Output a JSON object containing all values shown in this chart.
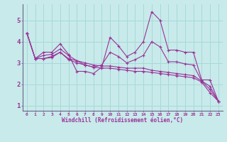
{
  "xlabel": "Windchill (Refroidissement éolien,°C)",
  "bg_color": "#c8eaea",
  "grid_color": "#a8d8d8",
  "line_color": "#993399",
  "series": [
    [
      4.4,
      3.2,
      3.5,
      3.5,
      3.9,
      3.4,
      2.6,
      2.6,
      2.5,
      2.8,
      4.2,
      3.8,
      3.3,
      3.5,
      4.0,
      5.4,
      5.0,
      3.6,
      3.6,
      3.5,
      3.5,
      2.2,
      2.2,
      1.2
    ],
    [
      4.4,
      3.2,
      3.2,
      3.25,
      3.5,
      3.15,
      3.0,
      2.9,
      2.8,
      2.75,
      2.75,
      2.7,
      2.65,
      2.6,
      2.6,
      2.55,
      2.5,
      2.45,
      2.4,
      2.35,
      2.3,
      2.1,
      1.6,
      1.2
    ],
    [
      4.4,
      3.2,
      3.35,
      3.4,
      3.65,
      3.35,
      3.1,
      2.9,
      2.8,
      2.9,
      3.5,
      3.3,
      3.0,
      3.15,
      3.35,
      4.0,
      3.75,
      3.05,
      3.05,
      2.95,
      2.9,
      2.15,
      1.9,
      1.2
    ],
    [
      4.4,
      3.2,
      3.2,
      3.3,
      3.5,
      3.2,
      3.1,
      3.0,
      2.9,
      2.85,
      2.85,
      2.8,
      2.75,
      2.75,
      2.75,
      2.65,
      2.6,
      2.55,
      2.5,
      2.45,
      2.4,
      2.15,
      1.75,
      1.2
    ]
  ],
  "x_values": [
    0,
    1,
    2,
    3,
    4,
    5,
    6,
    7,
    8,
    9,
    10,
    11,
    12,
    13,
    14,
    15,
    16,
    17,
    18,
    19,
    20,
    21,
    22,
    23
  ],
  "ylim": [
    0.75,
    5.75
  ],
  "xlim": [
    -0.5,
    23.5
  ],
  "yticks": [
    1,
    2,
    3,
    4,
    5
  ],
  "xticks": [
    0,
    1,
    2,
    3,
    4,
    5,
    6,
    7,
    8,
    9,
    10,
    11,
    12,
    13,
    14,
    15,
    16,
    17,
    18,
    19,
    20,
    21,
    22,
    23
  ]
}
